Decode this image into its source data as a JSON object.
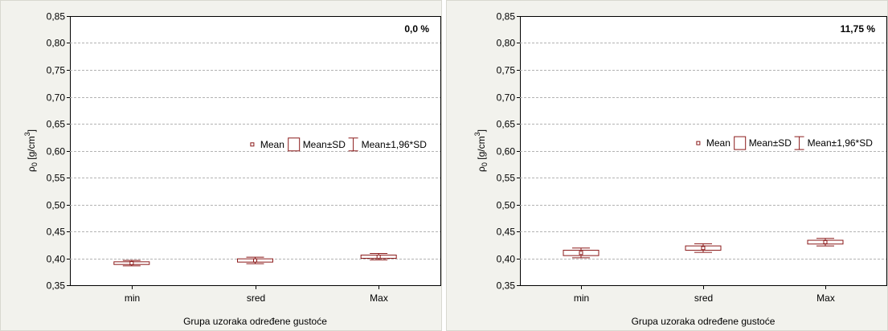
{
  "chart_data": [
    {
      "type": "box",
      "annotation": "0,0 %",
      "xlabel": "Grupa uzoraka određene gustoće",
      "ylabel": "ρ",
      "ylabel_sub": "0",
      "ylabel_unit": " [g/cm",
      "ylabel_sup": "3",
      "ylabel_close": "]",
      "ylim": [
        0.35,
        0.85
      ],
      "yticks": [
        "0,35",
        "0,40",
        "0,45",
        "0,50",
        "0,55",
        "0,60",
        "0,65",
        "0,70",
        "0,75",
        "0,80",
        "0,85"
      ],
      "categories": [
        "min",
        "sred",
        "Max"
      ],
      "series": [
        {
          "category": "min",
          "mean": 0.391,
          "sd": 0.0025,
          "sd196": 0.005
        },
        {
          "category": "sred",
          "mean": 0.396,
          "sd": 0.003,
          "sd196": 0.006
        },
        {
          "category": "Max",
          "mean": 0.403,
          "sd": 0.003,
          "sd196": 0.006
        }
      ],
      "legend": [
        "Mean",
        "Mean±SD",
        "Mean±1,96*SD"
      ],
      "legend_anchor_y": 0.477,
      "grid": true,
      "color": "#8b1a1a"
    },
    {
      "type": "box",
      "annotation": "11,75 %",
      "xlabel": "Grupa uzoraka određene gustoće",
      "ylabel": "ρ",
      "ylabel_sub": "0",
      "ylabel_unit": " [g/cm",
      "ylabel_sup": "3",
      "ylabel_close": "]",
      "ylim": [
        0.35,
        0.85
      ],
      "yticks": [
        "0,35",
        "0,40",
        "0,45",
        "0,50",
        "0,55",
        "0,60",
        "0,65",
        "0,70",
        "0,75",
        "0,80",
        "0,85"
      ],
      "categories": [
        "min",
        "sred",
        "Max"
      ],
      "series": [
        {
          "category": "min",
          "mean": 0.41,
          "sd": 0.005,
          "sd196": 0.009
        },
        {
          "category": "sred",
          "mean": 0.419,
          "sd": 0.004,
          "sd196": 0.008
        },
        {
          "category": "Max",
          "mean": 0.43,
          "sd": 0.0035,
          "sd196": 0.007
        },
        {
          "category": "_pad",
          "mean": null
        }
      ],
      "legend": [
        "Mean",
        "Mean±SD",
        "Mean±1,96*SD"
      ],
      "legend_anchor_y": 0.472,
      "grid": true,
      "color": "#8b1a1a"
    }
  ]
}
